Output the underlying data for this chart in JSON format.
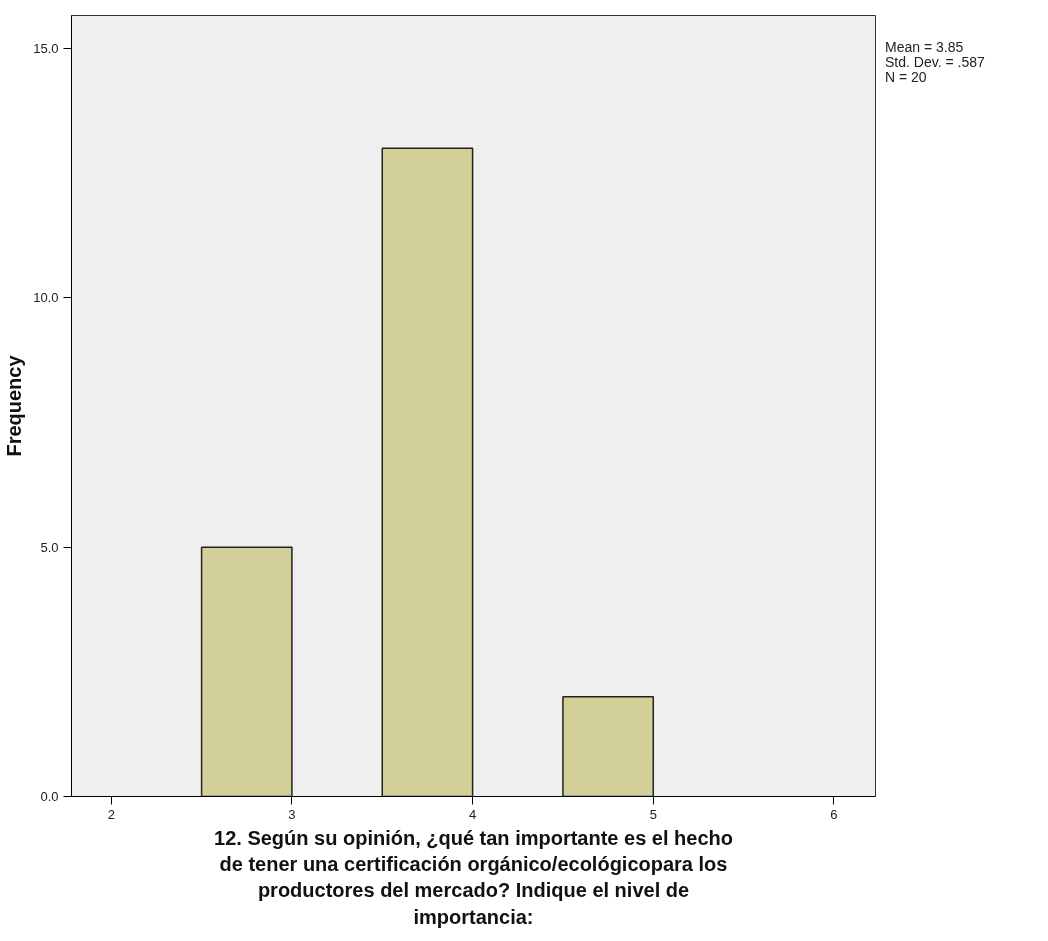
{
  "chart_data": {
    "type": "histogram",
    "xlabel": "12. Según su opinión, ¿qué tan importante es el hecho\nde tener una certificación orgánico/ecológicopara los\nproductores del mercado? Indique el nivel de\nimportancia:",
    "ylabel": "Frequency",
    "bins": [
      2.5,
      3.0,
      3.5,
      4.0,
      4.5,
      5.0
    ],
    "values": [
      5,
      0,
      13,
      0,
      2
    ],
    "color": "#d3cf98",
    "xlim": [
      1.78,
      6.23
    ],
    "xticks": [
      2,
      3,
      4,
      5,
      6
    ],
    "ylim": [
      0,
      15.66
    ],
    "yticks": [
      {
        "value": 0,
        "label": "0.0"
      },
      {
        "value": 5,
        "label": "5.0"
      },
      {
        "value": 10,
        "label": "10.0"
      },
      {
        "value": 15,
        "label": "15.0"
      }
    ],
    "grid": false,
    "annotations": [
      "Mean = 3.85",
      "Std. Dev. = .587",
      "N = 20"
    ]
  }
}
